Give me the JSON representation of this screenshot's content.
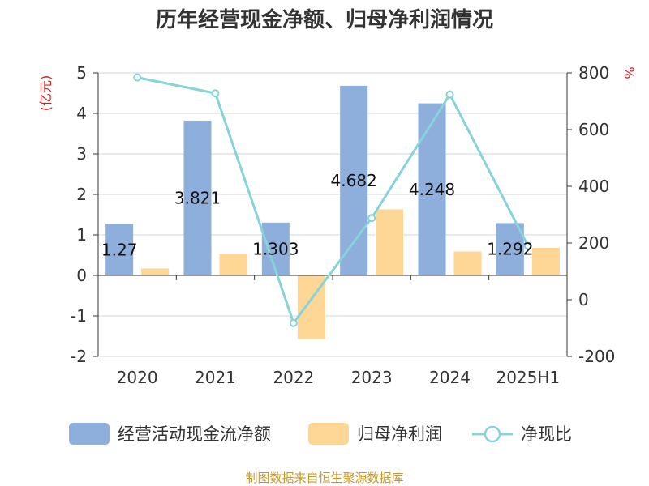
{
  "chart_data": {
    "type": "bar",
    "title": "历年经营现金净额、归母净利润情况",
    "categories": [
      "2020",
      "2021",
      "2022",
      "2023",
      "2024",
      "2025H1"
    ],
    "series": [
      {
        "name": "经营活动现金流净额",
        "type": "bar",
        "axis": "left",
        "color": "#8eaedc",
        "values": [
          1.27,
          3.821,
          1.303,
          4.682,
          4.248,
          1.292
        ],
        "labels": [
          "1.27",
          "3.821",
          "1.303",
          "4.682",
          "4.248",
          "1.292"
        ]
      },
      {
        "name": "归母净利润",
        "type": "bar",
        "axis": "left",
        "color": "#fed695",
        "values": [
          0.17,
          0.53,
          -1.57,
          1.63,
          0.59,
          0.68
        ]
      },
      {
        "name": "净现比",
        "type": "line",
        "axis": "right",
        "color": "#86d3d8",
        "values": [
          784,
          728,
          -82,
          288,
          724,
          190
        ]
      }
    ],
    "left_axis": {
      "unit": "(亿元)",
      "min": -2,
      "max": 5,
      "ticks": [
        "-2",
        "-1",
        "0",
        "1",
        "2",
        "3",
        "4",
        "5"
      ]
    },
    "right_axis": {
      "unit": "%",
      "min": -200,
      "max": 800,
      "ticks": [
        "-200",
        "0",
        "200",
        "400",
        "600",
        "800"
      ]
    },
    "grid": true,
    "legend": "bottom"
  },
  "source": "制图数据来自恒生聚源数据库"
}
